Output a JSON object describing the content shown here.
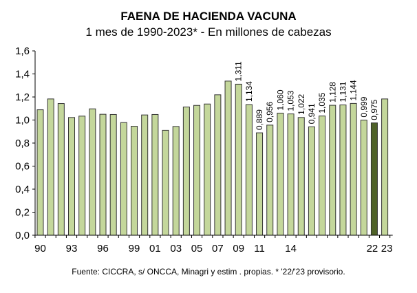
{
  "chart_data": {
    "type": "bar",
    "title": "FAENA DE HACIENDA VACUNA",
    "subtitle": "1 mes de 1990-2023* - En millones de cabezas",
    "source": "Fuente: CICCRA, s/ ONCCA, Minagri y estim . propias. * '22/'23 provisorio.",
    "xlabel": "",
    "ylabel": "",
    "ylim": [
      0,
      1.6
    ],
    "yticks": [
      "0,0",
      "0,2",
      "0,4",
      "0,6",
      "0,8",
      "1,0",
      "1,2",
      "1,4",
      "1,6"
    ],
    "categories": [
      "1990",
      "1991",
      "1992",
      "1993",
      "1994",
      "1995",
      "1996",
      "1997",
      "1998",
      "1999",
      "2000",
      "2001",
      "2002",
      "2003",
      "2004",
      "2005",
      "2006",
      "2007",
      "2008",
      "2009",
      "2010",
      "2011",
      "2012",
      "2013",
      "2014",
      "2015",
      "2016",
      "2017",
      "2018",
      "2019",
      "2020",
      "2021",
      "2022",
      "2023"
    ],
    "tick_labels": [
      "90",
      "",
      "",
      "93",
      "",
      "",
      "96",
      "",
      "",
      "99",
      "",
      "01",
      "",
      "03",
      "",
      "05",
      "",
      "07",
      "",
      "09",
      "",
      "11",
      "",
      "",
      "14",
      "",
      "",
      "",
      "",
      "",
      "",
      "",
      "22",
      "23"
    ],
    "values": [
      1.089,
      1.183,
      1.143,
      1.022,
      1.034,
      1.097,
      1.05,
      1.048,
      0.978,
      0.946,
      1.044,
      1.048,
      0.911,
      0.944,
      1.113,
      1.127,
      1.139,
      1.219,
      1.338,
      1.311,
      1.134,
      0.889,
      0.956,
      1.06,
      1.053,
      1.022,
      0.941,
      1.035,
      1.128,
      1.131,
      1.144,
      0.999,
      0.975,
      1.183
    ],
    "data_labels": [
      "",
      "",
      "",
      "",
      "",
      "",
      "",
      "",
      "",
      "",
      "",
      "",
      "",
      "",
      "",
      "",
      "",
      "",
      "",
      "1,311",
      "1,134",
      "0,889",
      "0,956",
      "1,060",
      "1,053",
      "1,022",
      "0,941",
      "1,035",
      "1,128",
      "1,131",
      "1,144",
      "0,999",
      "0,975",
      ""
    ],
    "highlight_index": 32,
    "colors": {
      "bar": "#c4d79b",
      "highlight": "#4f6228",
      "edge": "#333333"
    },
    "grid": false,
    "legend": "none"
  }
}
